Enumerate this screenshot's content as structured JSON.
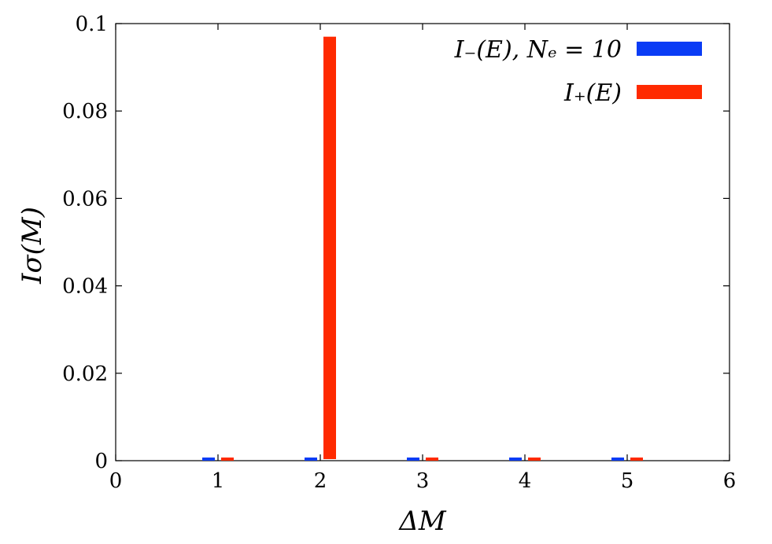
{
  "chart_data": {
    "type": "bar",
    "xlabel": "ΔM",
    "ylabel": "Iσ(M)",
    "xlim": [
      0,
      6
    ],
    "ylim": [
      0,
      0.1
    ],
    "x_ticks": [
      0,
      1,
      2,
      3,
      4,
      5,
      6
    ],
    "x_tick_labels": [
      "0",
      "1",
      "2",
      "3",
      "4",
      "5",
      "6"
    ],
    "y_ticks": [
      0,
      0.02,
      0.04,
      0.06,
      0.08,
      0.1
    ],
    "y_tick_labels": [
      "0",
      "0.02",
      "0.04",
      "0.06",
      "0.08",
      "0.1"
    ],
    "grid": false,
    "legend_position": "top-right",
    "x": [
      1,
      2,
      3,
      4,
      5
    ],
    "series": [
      {
        "name": "I₋(E), Nₑ = 10",
        "color": "#0a3cf5",
        "values": [
          0,
          0,
          0,
          0,
          0
        ]
      },
      {
        "name": "I₊(E)",
        "color": "#ff2a00",
        "values": [
          0,
          0.097,
          0,
          0,
          0
        ]
      }
    ]
  }
}
